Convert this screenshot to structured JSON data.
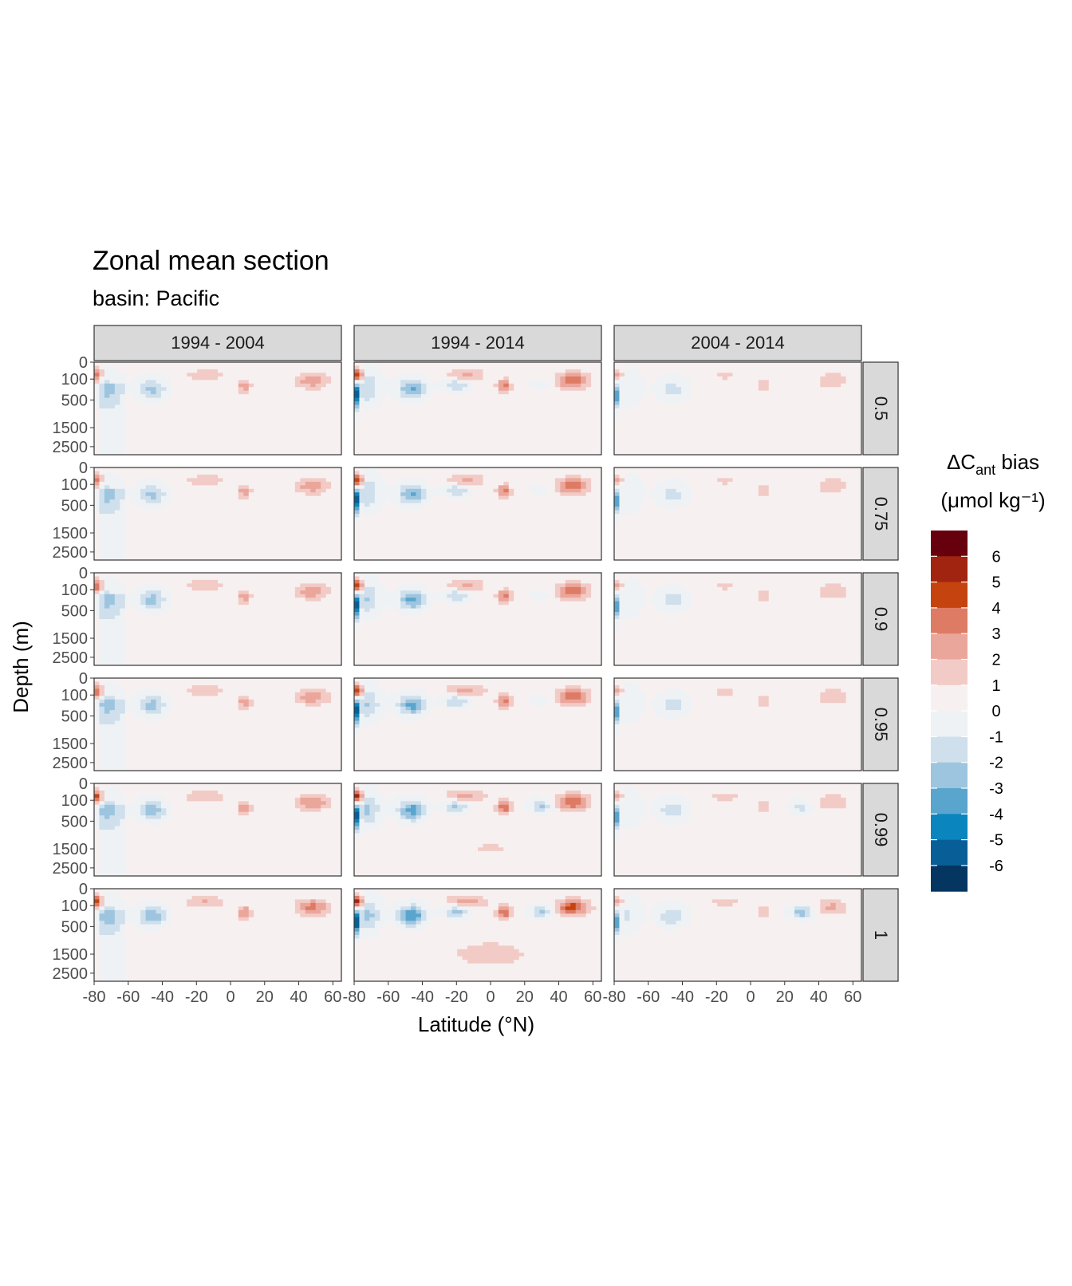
{
  "chart_data": {
    "type": "heatmap",
    "title": "Zonal mean section",
    "subtitle": "basin: Pacific",
    "xlabel": "Latitude (°N)",
    "ylabel": "Depth (m)",
    "xlim": [
      -80,
      65
    ],
    "ylim": [
      0,
      3000
    ],
    "x_ticks": [
      -80,
      -60,
      -40,
      -20,
      0,
      20,
      40,
      60
    ],
    "y_ticks": [
      0,
      100,
      500,
      1500,
      2500
    ],
    "y_transform": "reversed sqrt",
    "column_facets": [
      "1994 - 2004",
      "1994 - 2014",
      "2004 - 2014"
    ],
    "row_facets": [
      "0.5",
      "0.75",
      "0.9",
      "0.95",
      "0.99",
      "1"
    ],
    "legend": {
      "title_main": "ΔC",
      "title_sub": "ant",
      "title_rest": " bias",
      "units": "(μmol kg⁻¹)",
      "breaks": [
        "6",
        "5",
        "4",
        "3",
        "2",
        "1",
        "0",
        "-1",
        "-2",
        "-3",
        "-4",
        "-5",
        "-6"
      ],
      "colors": [
        "#67000d",
        "#a12410",
        "#c5430e",
        "#de7b64",
        "#eba69b",
        "#f2cbc6",
        "#f7f0f0",
        "#eef2f5",
        "#cfdfec",
        "#9dc5df",
        "#5aa5cd",
        "#0b85bd",
        "#085f97",
        "#053561"
      ]
    },
    "features": [
      {
        "lat": -72,
        "depth": 250,
        "val": -1.6,
        "sx": 7,
        "sy": 9
      },
      {
        "lat": -46,
        "depth": 260,
        "val": -2.6,
        "sx": 8,
        "sy": 6
      },
      {
        "lat": -78,
        "depth": 60,
        "val": 4.0,
        "sx": 3,
        "sy": 4
      },
      {
        "lat": -15,
        "depth": 60,
        "val": 1.6,
        "sx": 12,
        "sy": 4
      },
      {
        "lat": 8,
        "depth": 200,
        "val": 2.4,
        "sx": 4,
        "sy": 4
      },
      {
        "lat": 48,
        "depth": 120,
        "val": 2.6,
        "sx": 10,
        "sy": 5
      },
      {
        "lat": 0,
        "depth": 1500,
        "val": 0.6,
        "sx": 60,
        "sy": 20
      }
    ]
  }
}
